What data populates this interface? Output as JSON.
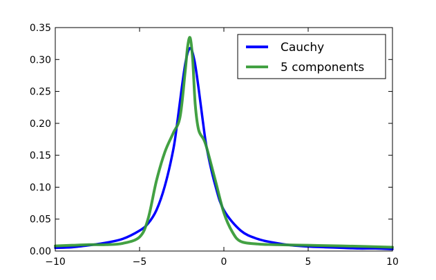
{
  "chart_data": {
    "type": "line",
    "title": "",
    "xlabel": "",
    "ylabel": "",
    "xlim": [
      -10,
      10
    ],
    "ylim": [
      0.0,
      0.35
    ],
    "x_ticks": [
      -10,
      -5,
      0,
      5,
      10
    ],
    "x_tick_labels": [
      "−10",
      "−5",
      "0",
      "5",
      "10"
    ],
    "y_ticks": [
      0.0,
      0.05,
      0.1,
      0.15,
      0.2,
      0.25,
      0.3,
      0.35
    ],
    "y_tick_labels": [
      "0.00",
      "0.05",
      "0.10",
      "0.15",
      "0.20",
      "0.25",
      "0.30",
      "0.35"
    ],
    "grid": false,
    "legend_position": "top-right",
    "series": [
      {
        "name": "Cauchy",
        "color": "#0000ff",
        "x": [
          -10,
          -9,
          -8,
          -7,
          -6,
          -5,
          -4.5,
          -4,
          -3.5,
          -3,
          -2.75,
          -2.5,
          -2.25,
          -2,
          -1.75,
          -1.5,
          -1.25,
          -1,
          -0.5,
          0,
          1,
          2,
          3,
          4,
          5,
          6,
          7,
          8,
          9,
          10
        ],
        "y": [
          0.005,
          0.006,
          0.009,
          0.013,
          0.019,
          0.032,
          0.043,
          0.064,
          0.102,
          0.159,
          0.204,
          0.255,
          0.299,
          0.318,
          0.299,
          0.255,
          0.204,
          0.159,
          0.102,
          0.064,
          0.032,
          0.019,
          0.013,
          0.009,
          0.007,
          0.006,
          0.005,
          0.004,
          0.004,
          0.003
        ]
      },
      {
        "name": "5 components",
        "color": "#339933",
        "x": [
          -10,
          -9,
          -8,
          -7,
          -6,
          -5,
          -4.5,
          -4,
          -3.5,
          -3,
          -2.6,
          -2.3,
          -2.15,
          -2,
          -1.85,
          -1.7,
          -1.5,
          -1.2,
          -1,
          -0.5,
          0,
          0.5,
          1,
          2,
          3,
          5,
          7,
          10
        ],
        "y": [
          0.008,
          0.009,
          0.01,
          0.01,
          0.012,
          0.022,
          0.05,
          0.11,
          0.155,
          0.185,
          0.21,
          0.28,
          0.32,
          0.334,
          0.3,
          0.23,
          0.19,
          0.175,
          0.16,
          0.11,
          0.06,
          0.03,
          0.015,
          0.011,
          0.01,
          0.009,
          0.008,
          0.006
        ]
      }
    ]
  }
}
